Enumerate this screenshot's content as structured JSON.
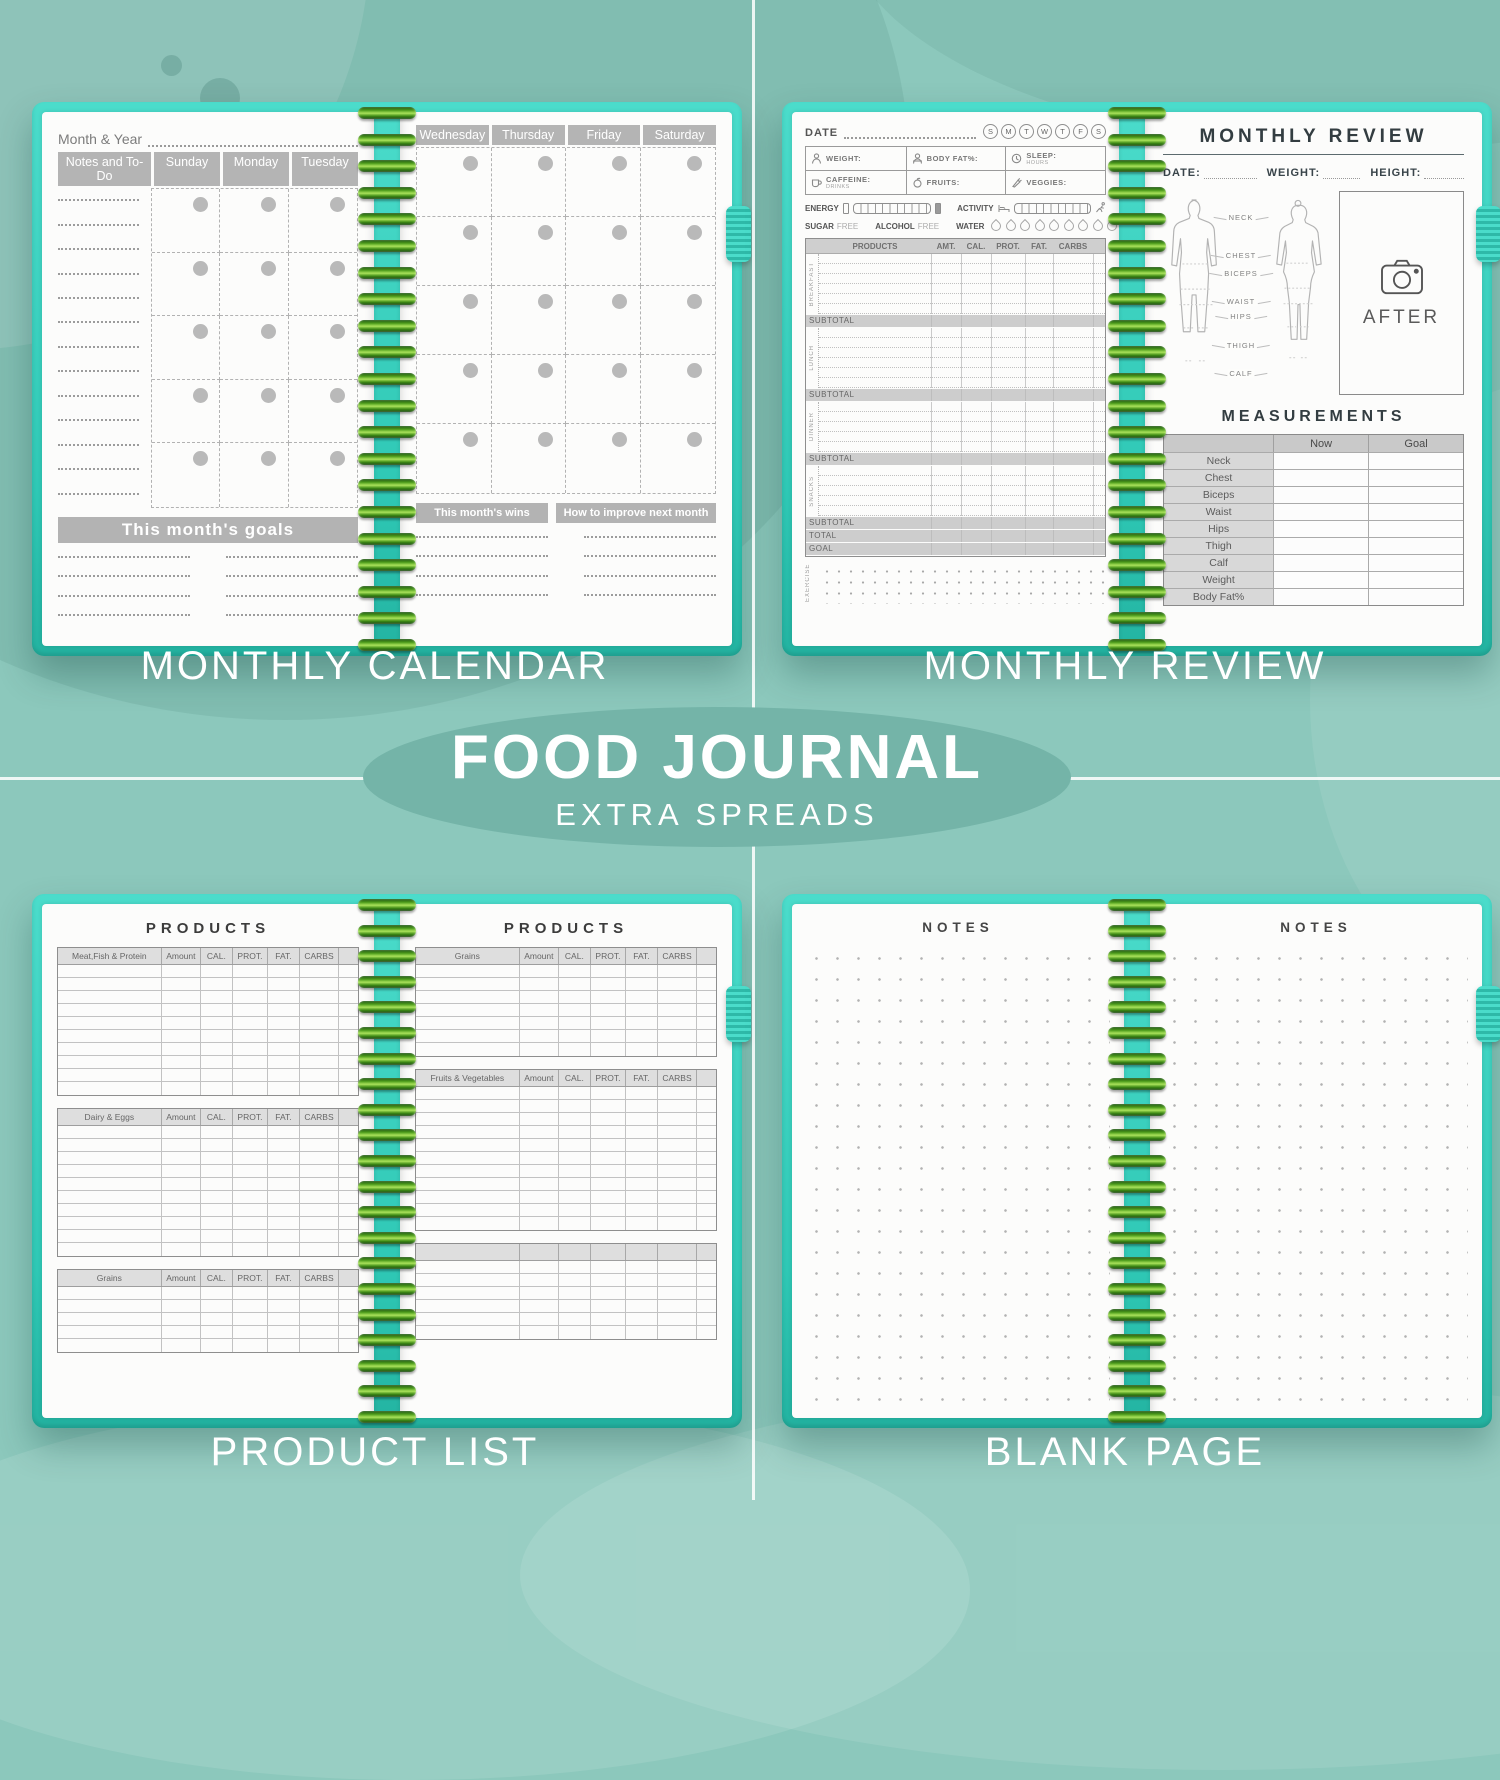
{
  "center": {
    "title": "FOOD JOURNAL",
    "subtitle": "EXTRA SPREADS"
  },
  "captions": {
    "monthly_calendar": "MONTHLY CALENDAR",
    "monthly_review": "MONTHLY REVIEW",
    "product_list": "PRODUCT LIST",
    "blank_page": "BLANK PAGE"
  },
  "colors": {
    "background": "#8cc8bc",
    "cover": "#3cd7c4",
    "spiral": "#4f9e1d",
    "banner": "#b3b3b3",
    "badge": "#74b4a8"
  },
  "monthly_calendar": {
    "month_year_label": "Month & Year",
    "left_header": [
      "Notes and To-Do",
      "Sunday",
      "Monday",
      "Tuesday"
    ],
    "right_header": [
      "Wednesday",
      "Thursday",
      "Friday",
      "Saturday"
    ],
    "goals_banner": "This month's goals",
    "wins_banner": "This month's wins",
    "improve_banner": "How to improve next month"
  },
  "daily_log": {
    "date_label": "DATE",
    "week_letters": [
      "S",
      "M",
      "T",
      "W",
      "T",
      "F",
      "S"
    ],
    "stats": [
      {
        "icon": "weight-icon",
        "label": "WEIGHT:"
      },
      {
        "icon": "body-fat-icon",
        "label": "BODY FAT%:"
      },
      {
        "icon": "sleep-icon",
        "label": "SLEEP:",
        "sub": "HOURS"
      },
      {
        "icon": "caffeine-icon",
        "label": "CAFFEINE:",
        "sub": "DRINKS"
      },
      {
        "icon": "fruits-icon",
        "label": "FRUITS:"
      },
      {
        "icon": "veggies-icon",
        "label": "VEGGIES:"
      }
    ],
    "energy_label": "ENERGY",
    "activity_label": "ACTIVITY",
    "sugar_label": "SUGAR",
    "alcohol_label": "ALCOHOL",
    "free_label": "FREE",
    "water_label": "WATER",
    "water_drop_count": 10,
    "table_headers": [
      "PRODUCTS",
      "AMT.",
      "CAL.",
      "PROT.",
      "FAT.",
      "CARBS"
    ],
    "sections": [
      "BREAKFAST",
      "LUNCH",
      "DINNER",
      "SNACKS"
    ],
    "subtotal_label": "SUBTOTAL",
    "total_label": "TOTAL",
    "goal_label": "GOAL",
    "exercise_label": "EXERCISE"
  },
  "monthly_review": {
    "title": "MONTHLY REVIEW",
    "fields": [
      "DATE:",
      "WEIGHT:",
      "HEIGHT:"
    ],
    "body_labels": [
      "NECK",
      "CHEST",
      "BICEPS",
      "WAIST",
      "HIPS",
      "THIGH",
      "CALF"
    ],
    "after_label": "AFTER",
    "measurements_title": "MEASUREMENTS",
    "col_now": "Now",
    "col_goal": "Goal",
    "rows": [
      "Neck",
      "Chest",
      "Biceps",
      "Waist",
      "Hips",
      "Thigh",
      "Calf",
      "Weight",
      "Body Fat%"
    ]
  },
  "product_list": {
    "page_title": "PRODUCTS",
    "columns": [
      "Amount",
      "CAL.",
      "PROT.",
      "FAT.",
      "CARBS"
    ],
    "left_tables": [
      {
        "category": "Meat,Fish & Protein",
        "rows": 10
      },
      {
        "category": "Dairy & Eggs",
        "rows": 10
      },
      {
        "category": "Grains",
        "rows": 5
      }
    ],
    "right_tables": [
      {
        "category": "Grains",
        "rows": 7
      },
      {
        "category": "Fruits & Vegetables",
        "rows": 11
      },
      {
        "category": "",
        "rows": 6
      }
    ]
  },
  "notes_page": {
    "title": "NOTES"
  }
}
